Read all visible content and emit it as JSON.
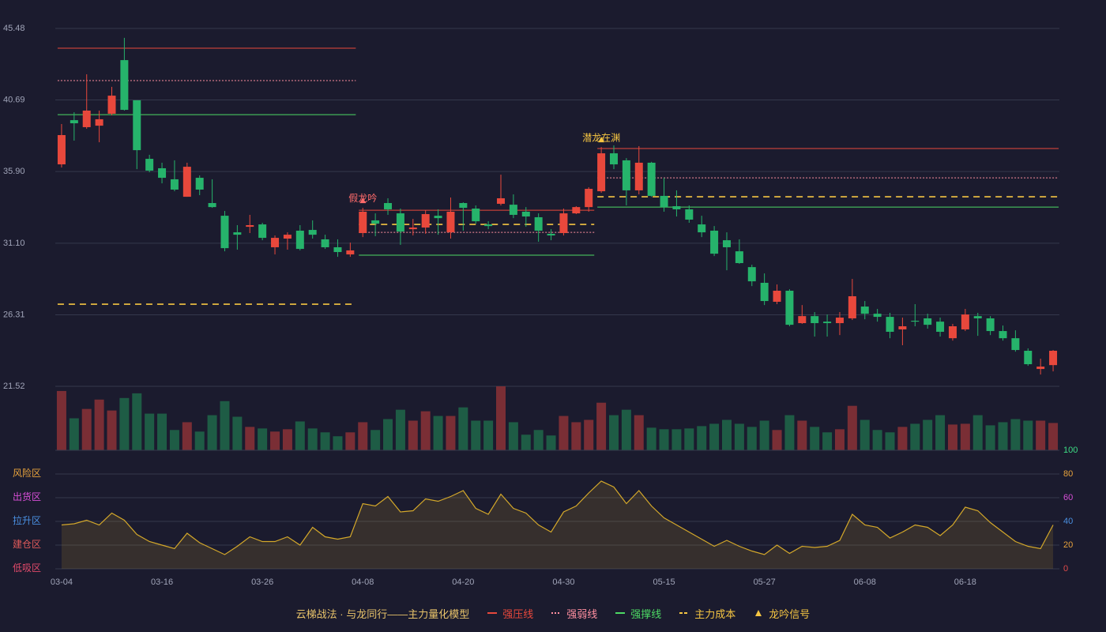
{
  "chart_data": [
    {
      "type": "candlestick",
      "ylim": [
        21.52,
        45.48
      ],
      "yticks": [
        45.48,
        40.69,
        {
          "value": 35.9,
          "label": "35.90"
        },
        {
          "value": 31.1,
          "label": "31.10"
        },
        26.31,
        21.52
      ],
      "up_color": "#e8483c",
      "down_color": "#26b36b",
      "open": [
        36.38,
        39.34,
        38.87,
        38.97,
        39.77,
        43.36,
        40.67,
        36.75,
        36.12,
        35.38,
        34.21,
        35.48,
        33.79,
        32.94,
        31.83,
        32.2,
        32.36,
        30.83,
        31.41,
        31.94,
        31.99,
        31.36,
        30.83,
        30.35,
        31.78,
        32.63,
        33.79,
        33.1,
        32.04,
        32.15,
        32.94,
        31.83,
        33.79,
        33.42,
        32.36,
        33.74,
        33.68,
        33.21,
        32.84,
        31.73,
        31.78,
        33.1,
        33.52,
        34.58,
        37.12,
        36.65,
        34.64,
        36.49,
        34.27,
        33.58,
        33.37,
        32.36,
        31.94,
        31.3,
        30.56,
        29.5,
        28.45,
        27.18,
        27.92,
        25.75,
        26.22,
        25.85,
        25.75,
        26.07,
        26.86,
        26.38,
        26.17,
        25.33,
        25.91,
        26.07,
        25.85,
        24.74,
        25.33,
        26.22,
        26.07,
        25.22,
        24.74,
        23.9,
        22.68,
        22.94
      ],
      "high": [
        39.08,
        39.87,
        42.41,
        39.98,
        41.57,
        44.85,
        40.67,
        37.02,
        36.49,
        36.65,
        36.49,
        35.64,
        35.38,
        33.26,
        32.31,
        33.0,
        32.47,
        31.62,
        31.83,
        32.31,
        32.63,
        31.67,
        31.36,
        31.14,
        33.47,
        33.1,
        34.11,
        33.42,
        32.73,
        33.31,
        33.37,
        34.16,
        33.84,
        33.63,
        32.57,
        35.69,
        34.37,
        33.52,
        33.1,
        32.04,
        33.42,
        33.58,
        34.85,
        37.54,
        37.65,
        36.8,
        37.6,
        36.55,
        35.48,
        34.64,
        33.63,
        32.94,
        32.25,
        31.83,
        31.36,
        29.66,
        29.08,
        28.34,
        28.02,
        26.96,
        26.49,
        26.33,
        26.49,
        28.71,
        27.23,
        26.7,
        26.44,
        26.12,
        27.02,
        26.38,
        26.12,
        25.7,
        26.7,
        26.44,
        26.22,
        25.59,
        25.27,
        24.06,
        23.37,
        23.95
      ],
      "low": [
        36.17,
        37.97,
        38.76,
        37.86,
        39.66,
        39.98,
        36.06,
        35.85,
        35.11,
        34.58,
        34.21,
        34.32,
        33.47,
        30.56,
        30.67,
        31.78,
        31.3,
        30.35,
        30.67,
        30.62,
        31.41,
        30.72,
        30.19,
        30.19,
        31.51,
        31.57,
        33.0,
        30.99,
        31.62,
        31.73,
        31.67,
        31.41,
        31.94,
        32.41,
        32.04,
        33.63,
        32.78,
        32.2,
        31.2,
        31.3,
        31.62,
        33.05,
        33.21,
        34.48,
        36.06,
        33.63,
        34.37,
        34.2,
        33.21,
        32.89,
        32.47,
        31.51,
        30.24,
        29.29,
        29.72,
        28.23,
        26.96,
        27.02,
        25.54,
        25.7,
        24.85,
        24.85,
        24.95,
        25.96,
        26.01,
        25.85,
        24.74,
        24.27,
        25.54,
        25.38,
        24.85,
        24.58,
        25.22,
        24.9,
        24.95,
        24.58,
        23.84,
        22.89,
        22.31,
        22.52
      ],
      "close": [
        38.34,
        39.13,
        39.98,
        39.4,
        40.98,
        40.03,
        37.33,
        35.96,
        35.48,
        34.69,
        36.22,
        34.69,
        33.52,
        30.77,
        31.67,
        32.31,
        31.46,
        31.46,
        31.67,
        30.72,
        31.67,
        30.83,
        30.51,
        30.62,
        33.21,
        32.41,
        33.37,
        31.88,
        32.15,
        33.05,
        32.78,
        33.21,
        33.47,
        32.57,
        32.25,
        34.11,
        33.0,
        32.89,
        31.94,
        31.62,
        33.1,
        33.52,
        34.74,
        37.12,
        36.38,
        34.64,
        36.49,
        34.27,
        33.52,
        33.37,
        32.68,
        31.83,
        30.4,
        30.83,
        29.77,
        28.55,
        27.23,
        27.92,
        25.64,
        26.22,
        25.75,
        25.75,
        26.12,
        27.55,
        26.38,
        26.17,
        25.17,
        25.54,
        25.85,
        25.64,
        25.17,
        25.54,
        26.33,
        26.07,
        25.22,
        24.74,
        23.95,
        23.0,
        22.84,
        23.9
      ],
      "zones": [
        {
          "start": 0,
          "end": 23,
          "levels": [
            44.16,
            41.99,
            39.71,
            27.02
          ]
        },
        {
          "start": 24,
          "end": 42,
          "levels": [
            33.31,
            31.83,
            30.3,
            32.36
          ]
        },
        {
          "start": 43,
          "end": 79,
          "levels": [
            37.44,
            35.48,
            33.52,
            34.21
          ]
        }
      ],
      "signals": [
        {
          "index": 24,
          "label": "假龙吟",
          "color": "#ff6b6b"
        },
        {
          "index": 43,
          "label": "潜龙在渊",
          "color": "#f5c542"
        }
      ]
    },
    {
      "type": "bar",
      "values": [
        76,
        41,
        53,
        65,
        51,
        67,
        73,
        47,
        47,
        26,
        36,
        24,
        45,
        63,
        43,
        30,
        28,
        24,
        27,
        37,
        28,
        23,
        18,
        23,
        36,
        26,
        40,
        52,
        38,
        50,
        44,
        44,
        55,
        38,
        38,
        82,
        36,
        20,
        26,
        19,
        44,
        36,
        39,
        61,
        45,
        52,
        45,
        29,
        27,
        27,
        28,
        31,
        34,
        39,
        34,
        30,
        38,
        26,
        45,
        38,
        30,
        23,
        27,
        57,
        39,
        26,
        23,
        30,
        34,
        39,
        45,
        33,
        34,
        45,
        32,
        36,
        40,
        38,
        38,
        35
      ],
      "up_color": "#7a2e35",
      "down_color": "#1e5c45"
    },
    {
      "type": "area",
      "categories": [
        "03-04",
        null,
        null,
        null,
        null,
        null,
        null,
        null,
        "03-16",
        null,
        null,
        null,
        null,
        null,
        null,
        null,
        "03-26",
        null,
        null,
        null,
        null,
        null,
        null,
        null,
        "04-08",
        null,
        null,
        null,
        null,
        null,
        null,
        null,
        "04-20",
        null,
        null,
        null,
        null,
        null,
        null,
        null,
        "04-30",
        null,
        null,
        null,
        null,
        null,
        null,
        null,
        "05-15",
        null,
        null,
        null,
        null,
        null,
        null,
        null,
        "05-27",
        null,
        null,
        null,
        null,
        null,
        null,
        null,
        "06-08",
        null,
        null,
        null,
        null,
        null,
        null,
        null,
        "06-18",
        null,
        null,
        null,
        null,
        null,
        null,
        null
      ],
      "values": [
        37,
        38,
        41,
        37,
        47,
        41,
        29,
        23,
        20,
        17,
        30,
        22,
        17,
        12,
        19,
        27,
        23,
        23,
        27,
        20,
        35,
        27,
        25,
        27,
        55,
        53,
        61,
        48,
        49,
        59,
        57,
        61,
        66,
        51,
        46,
        63,
        51,
        47,
        37,
        31,
        48,
        53,
        64,
        74,
        69,
        55,
        66,
        53,
        43,
        37,
        31,
        25,
        19,
        24,
        19,
        15,
        12,
        20,
        13,
        19,
        18,
        19,
        24,
        46,
        37,
        35,
        26,
        31,
        37,
        35,
        28,
        37,
        52,
        49,
        39,
        31,
        23,
        19,
        17,
        37
      ],
      "color": "#d4a82a",
      "ylim": [
        0,
        100
      ],
      "yticks": [
        0,
        20,
        40,
        60,
        80,
        100
      ],
      "ytick_colors": [
        "#e04a4a",
        "#e8a33c",
        "#4a90e2",
        "#d84fd8",
        "#e8a33c",
        "#3ddc84"
      ],
      "zones": [
        {
          "label": "风险区",
          "value": 80,
          "color": "#e8a33c"
        },
        {
          "label": "出货区",
          "value": 60,
          "color": "#d84fd8"
        },
        {
          "label": "拉升区",
          "value": 40,
          "color": "#4a90e2"
        },
        {
          "label": "建仓区",
          "value": 20,
          "color": "#e05a5a"
        },
        {
          "label": "低吸区",
          "value": 0,
          "color": "#e04a6a"
        }
      ]
    }
  ],
  "legend": {
    "title": "云梯战法 · 与龙同行——主力量化模型",
    "items": [
      {
        "name": "强压线",
        "color": "#e8483c",
        "style": "solid"
      },
      {
        "name": "强弱线",
        "color": "#ff8fa0",
        "style": "dotted"
      },
      {
        "name": "强撑线",
        "color": "#4cd964",
        "style": "solid"
      },
      {
        "name": "主力成本",
        "color": "#f5c542",
        "style": "dashed"
      },
      {
        "name": "龙吟信号",
        "color": "#f5c542",
        "style": "marker"
      }
    ]
  }
}
